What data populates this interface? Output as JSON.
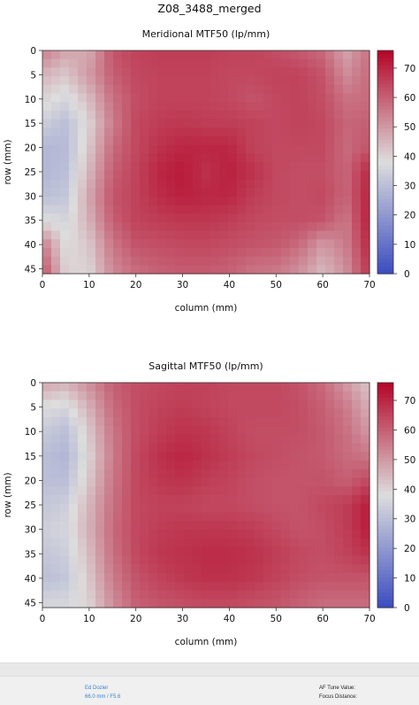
{
  "figure": {
    "title": "Z08_3488_merged"
  },
  "chart_data": [
    {
      "type": "heatmap",
      "title": "Meridional MTF50 (lp/mm)",
      "xlabel": "column (mm)",
      "ylabel": "row (mm)",
      "xlim": [
        0,
        70
      ],
      "ylim": [
        46,
        0
      ],
      "x_ticks": [
        "0",
        "10",
        "20",
        "30",
        "40",
        "50",
        "60",
        "70"
      ],
      "y_ticks": [
        "0",
        "5",
        "10",
        "15",
        "20",
        "25",
        "30",
        "35",
        "40",
        "45"
      ],
      "colorbar": {
        "vmin": 0,
        "vmax": 76,
        "ticks": [
          "0",
          "10",
          "20",
          "30",
          "40",
          "50",
          "60",
          "70"
        ]
      },
      "colors": {
        "low": "#3b4cc0",
        "mid": "#dddddd",
        "high": "#b40426"
      },
      "x": [
        0,
        5,
        10,
        15,
        20,
        25,
        30,
        35,
        40,
        45,
        50,
        55,
        60,
        65,
        70
      ],
      "y": [
        0,
        5,
        10,
        15,
        20,
        25,
        30,
        35,
        40,
        45
      ],
      "z": [
        [
          55,
          48,
          47,
          62,
          65,
          66,
          66,
          66,
          65,
          65,
          63,
          61,
          58,
          48,
          57
        ],
        [
          45,
          42,
          50,
          60,
          64,
          65,
          65,
          65,
          64,
          64,
          65,
          65,
          62,
          52,
          58
        ],
        [
          40,
          36,
          44,
          57,
          63,
          65,
          65,
          65,
          64,
          62,
          64,
          65,
          63,
          57,
          58
        ],
        [
          34,
          30,
          40,
          55,
          64,
          66,
          67,
          66,
          66,
          65,
          64,
          65,
          64,
          59,
          60
        ],
        [
          28,
          29,
          42,
          58,
          64,
          68,
          70,
          70,
          70,
          65,
          64,
          64,
          64,
          58,
          62
        ],
        [
          28,
          30,
          45,
          60,
          65,
          70,
          72,
          68,
          71,
          68,
          64,
          63,
          63,
          59,
          70
        ],
        [
          30,
          32,
          48,
          62,
          65,
          69,
          71,
          70,
          70,
          66,
          64,
          63,
          64,
          59,
          71
        ],
        [
          38,
          36,
          46,
          60,
          65,
          66,
          67,
          67,
          66,
          64,
          63,
          63,
          62,
          56,
          72
        ],
        [
          55,
          38,
          42,
          56,
          62,
          63,
          64,
          64,
          63,
          62,
          61,
          58,
          50,
          55,
          70
        ],
        [
          62,
          40,
          40,
          53,
          58,
          60,
          61,
          61,
          60,
          57,
          56,
          52,
          45,
          52,
          68
        ]
      ]
    },
    {
      "type": "heatmap",
      "title": "Sagittal MTF50 (lp/mm)",
      "xlabel": "column (mm)",
      "ylabel": "row (mm)",
      "xlim": [
        0,
        70
      ],
      "ylim": [
        46,
        0
      ],
      "x_ticks": [
        "0",
        "10",
        "20",
        "30",
        "40",
        "50",
        "60",
        "70"
      ],
      "y_ticks": [
        "0",
        "5",
        "10",
        "15",
        "20",
        "25",
        "30",
        "35",
        "40",
        "45"
      ],
      "colorbar": {
        "vmin": 0,
        "vmax": 76,
        "ticks": [
          "0",
          "10",
          "20",
          "30",
          "40",
          "50",
          "60",
          "70"
        ]
      },
      "colors": {
        "low": "#3b4cc0",
        "mid": "#dddddd",
        "high": "#b40426"
      },
      "x": [
        0,
        5,
        10,
        15,
        20,
        25,
        30,
        35,
        40,
        45,
        50,
        55,
        60,
        65,
        70
      ],
      "y": [
        0,
        5,
        10,
        15,
        20,
        25,
        30,
        35,
        40,
        45
      ],
      "z": [
        [
          48,
          46,
          52,
          60,
          63,
          64,
          65,
          65,
          64,
          64,
          64,
          62,
          58,
          50,
          42
        ],
        [
          38,
          36,
          46,
          58,
          63,
          65,
          66,
          65,
          64,
          64,
          64,
          63,
          60,
          55,
          46
        ],
        [
          33,
          30,
          42,
          56,
          63,
          66,
          68,
          67,
          65,
          63,
          63,
          63,
          61,
          57,
          50
        ],
        [
          30,
          28,
          40,
          55,
          64,
          68,
          70,
          68,
          66,
          64,
          63,
          62,
          61,
          58,
          56
        ],
        [
          30,
          30,
          42,
          56,
          64,
          67,
          68,
          66,
          65,
          63,
          62,
          62,
          62,
          60,
          64
        ],
        [
          32,
          34,
          45,
          57,
          64,
          65,
          65,
          64,
          64,
          63,
          62,
          62,
          64,
          66,
          72
        ],
        [
          34,
          36,
          46,
          58,
          64,
          66,
          67,
          67,
          67,
          66,
          64,
          62,
          63,
          66,
          72
        ],
        [
          32,
          34,
          44,
          57,
          64,
          67,
          68,
          69,
          69,
          68,
          66,
          64,
          63,
          65,
          68
        ],
        [
          30,
          32,
          42,
          55,
          62,
          65,
          67,
          68,
          68,
          67,
          65,
          63,
          62,
          62,
          62
        ],
        [
          36,
          36,
          40,
          52,
          60,
          62,
          63,
          64,
          64,
          63,
          62,
          60,
          58,
          58,
          58
        ]
      ]
    }
  ],
  "footer": {
    "author": "Ed Dozier",
    "lens": "66.0 mm / F5.6",
    "af_label": "AF Tune Value:",
    "focus_label": "Focus Distance:"
  }
}
